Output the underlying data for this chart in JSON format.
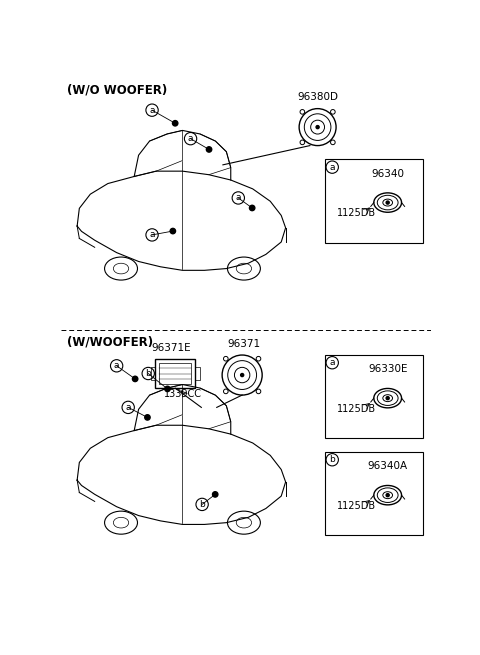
{
  "bg_color": "#ffffff",
  "section1_label": "(W/O WOOFER)",
  "section2_label": "(W/WOOFER)",
  "part_numbers": {
    "top_speaker": "96380D",
    "box1_part": "96340",
    "box1_code": "1125DB",
    "box2a_part": "96330E",
    "box2a_code": "1125DB",
    "box2b_part": "96340A",
    "box2b_code": "1125DB",
    "woofer_box_part": "96371E",
    "woofer_box_code": "1339CC",
    "woofer_round_part": "96371"
  },
  "font_size_part": 7.5,
  "font_size_code": 7.0,
  "font_size_section": 8.5
}
